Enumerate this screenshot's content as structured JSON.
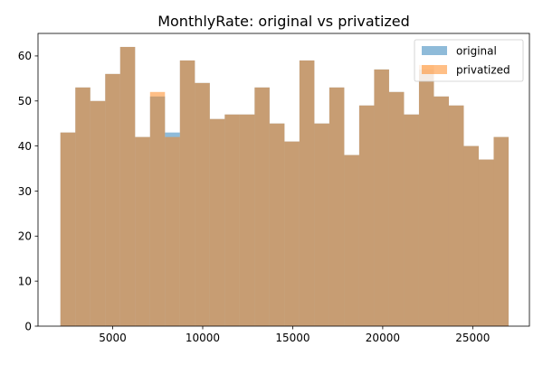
{
  "chart_data": {
    "type": "bar",
    "title": "MonthlyRate: original vs privatized",
    "xlabel": "",
    "ylabel": "",
    "xlim": [
      850,
      28150
    ],
    "ylim": [
      0,
      65
    ],
    "x_ticks": [
      5000,
      10000,
      15000,
      20000,
      25000
    ],
    "y_ticks": [
      0,
      10,
      20,
      30,
      40,
      50,
      60
    ],
    "grid": false,
    "legend_position": "top-right",
    "bin_edges": [
      2094,
      2924,
      3754,
      4584,
      5414,
      6244,
      7074,
      7904,
      8734,
      9564,
      10394,
      11224,
      12054,
      12884,
      13714,
      14544,
      15374,
      16204,
      17034,
      17864,
      18694,
      19524,
      20354,
      21184,
      22014,
      22844,
      23674,
      24504,
      25334,
      26164,
      26994
    ],
    "series": [
      {
        "name": "original",
        "color": "#1f77b4",
        "opacity": 0.5,
        "values": [
          43,
          53,
          50,
          56,
          62,
          42,
          51,
          43,
          59,
          54,
          46,
          47,
          47,
          53,
          45,
          41,
          59,
          45,
          53,
          38,
          49,
          57,
          52,
          47,
          57,
          51,
          49,
          40,
          37,
          42
        ]
      },
      {
        "name": "privatized",
        "color": "#ff7f0e",
        "opacity": 0.5,
        "values": [
          43,
          53,
          50,
          56,
          62,
          42,
          52,
          42,
          59,
          54,
          46,
          47,
          47,
          53,
          45,
          41,
          59,
          45,
          53,
          38,
          49,
          57,
          52,
          47,
          58,
          51,
          49,
          40,
          37,
          42
        ]
      }
    ]
  }
}
